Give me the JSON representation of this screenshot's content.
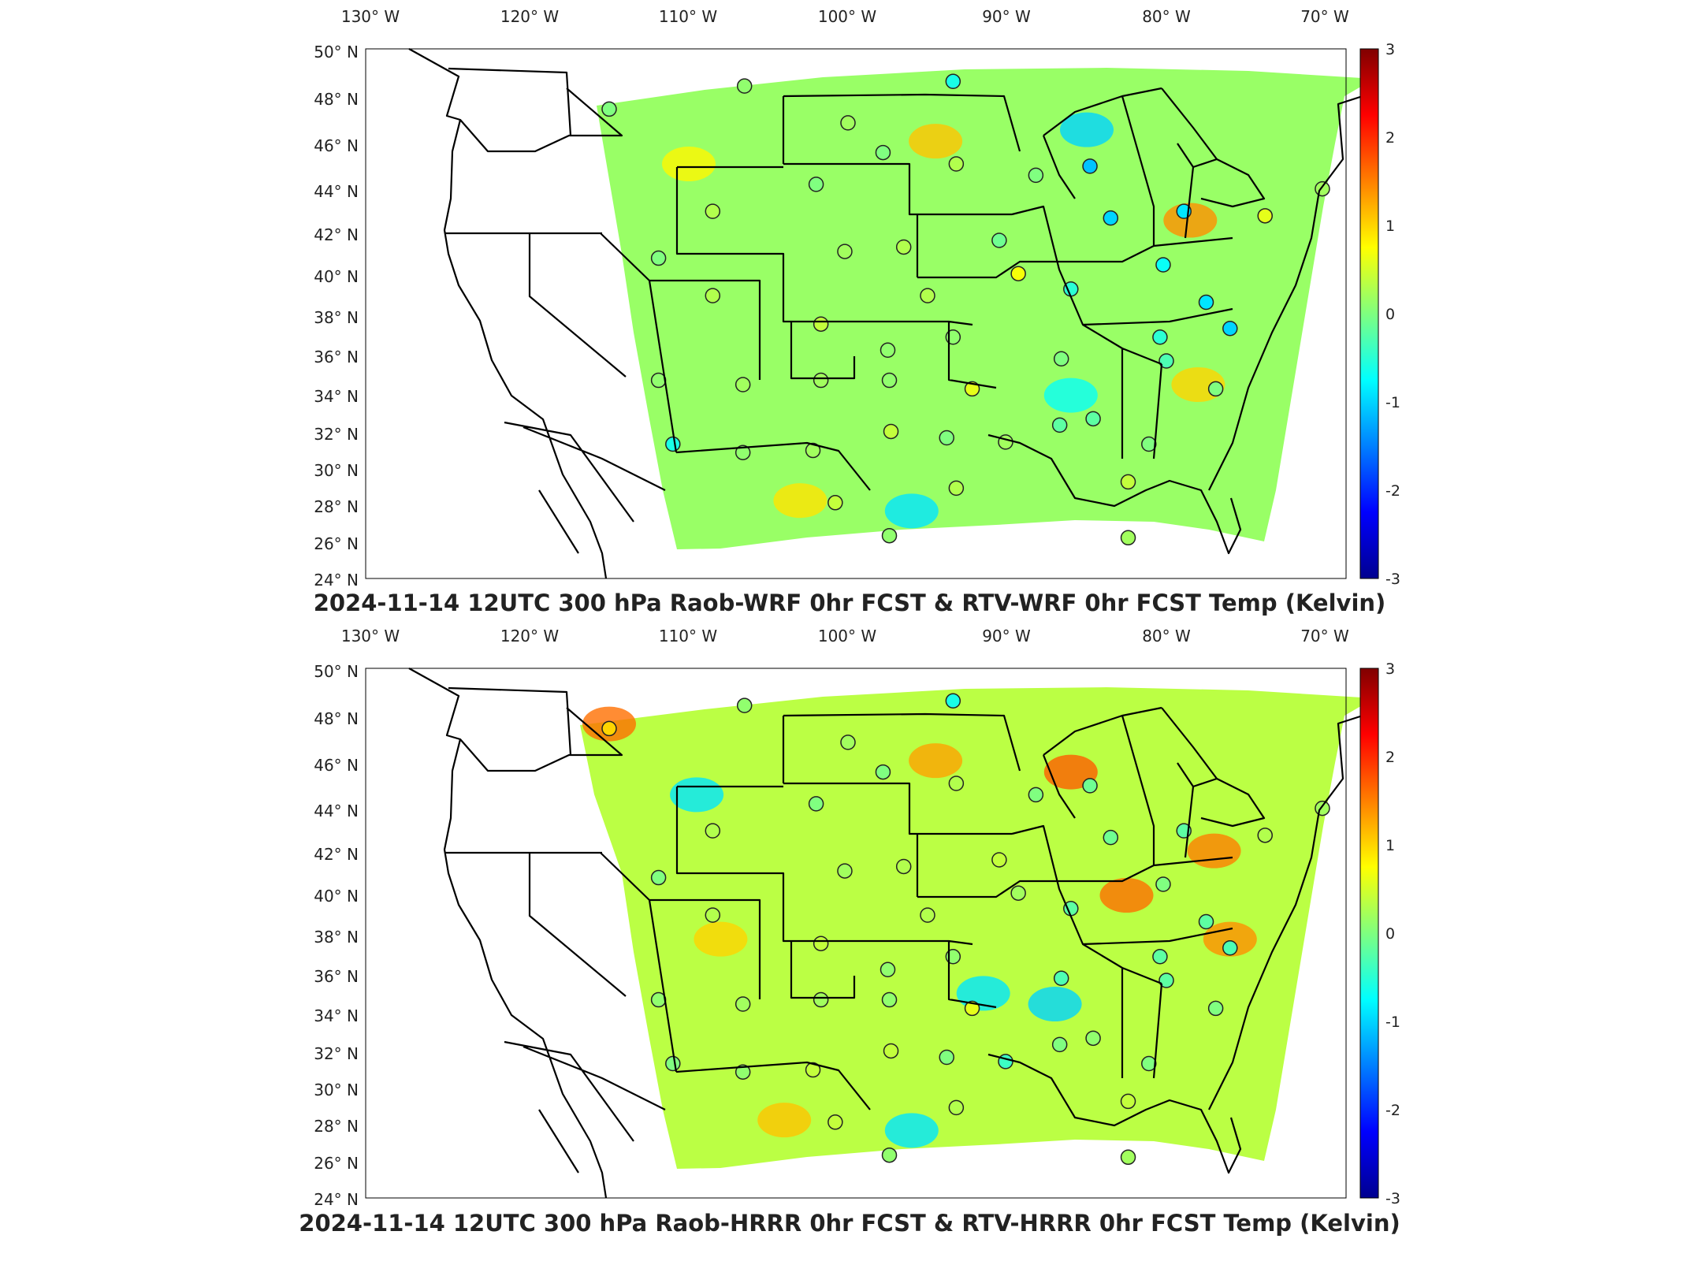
{
  "panels": [
    {
      "id": "wrf",
      "title": "2024-11-14 12UTC 300 hPa Raob-WRF 0hr FCST & RTV-WRF 0hr FCST Temp (Kelvin)",
      "lon_ticks": [
        "130° W",
        "120° W",
        "110° W",
        "100° W",
        "90° W",
        "80° W",
        "70° W"
      ],
      "lat_ticks": [
        "50° N",
        "48° N",
        "46° N",
        "44° N",
        "42° N",
        "40° N",
        "38° N",
        "36° N",
        "34° N",
        "32° N",
        "30° N",
        "28° N",
        "26° N",
        "24° N"
      ],
      "colorbar_ticks": [
        "3",
        "2",
        "1",
        "0",
        "-1",
        "-2",
        "-3"
      ],
      "anomalies": [
        {
          "lon": -85.0,
          "lat": 46.5,
          "v": -1.0
        },
        {
          "lon": -78.5,
          "lat": 42.5,
          "v": 1.4
        },
        {
          "lon": -94.5,
          "lat": 46.0,
          "v": 1.1
        },
        {
          "lon": -96.0,
          "lat": 29.0,
          "v": -0.9
        },
        {
          "lon": -110.0,
          "lat": 45.0,
          "v": 0.8
        },
        {
          "lon": -86.0,
          "lat": 34.5,
          "v": -0.7
        },
        {
          "lon": -78.0,
          "lat": 35.0,
          "v": 1.0
        },
        {
          "lon": -103.0,
          "lat": 29.5,
          "v": 0.9
        }
      ],
      "stations": [
        {
          "lon": -115.0,
          "lat": 47.4,
          "v": 0.0
        },
        {
          "lon": -106.5,
          "lat": 48.4,
          "v": 0.1
        },
        {
          "lon": -100.0,
          "lat": 46.8,
          "v": 0.2
        },
        {
          "lon": -97.8,
          "lat": 45.5,
          "v": 0.0
        },
        {
          "lon": -93.4,
          "lat": 48.6,
          "v": -0.6
        },
        {
          "lon": -93.2,
          "lat": 45.0,
          "v": 0.3
        },
        {
          "lon": -88.2,
          "lat": 44.5,
          "v": 0.0
        },
        {
          "lon": -84.8,
          "lat": 44.9,
          "v": -1.1
        },
        {
          "lon": -83.5,
          "lat": 42.6,
          "v": -1.0
        },
        {
          "lon": -78.9,
          "lat": 42.9,
          "v": -0.9
        },
        {
          "lon": -73.8,
          "lat": 42.7,
          "v": 0.6
        },
        {
          "lon": -70.2,
          "lat": 43.9,
          "v": 0.2
        },
        {
          "lon": -108.5,
          "lat": 42.9,
          "v": 0.3
        },
        {
          "lon": -102.0,
          "lat": 44.1,
          "v": 0.0
        },
        {
          "lon": -100.2,
          "lat": 41.1,
          "v": 0.2
        },
        {
          "lon": -96.5,
          "lat": 41.3,
          "v": 0.3
        },
        {
          "lon": -90.5,
          "lat": 41.6,
          "v": -0.1
        },
        {
          "lon": -89.3,
          "lat": 40.1,
          "v": 0.7
        },
        {
          "lon": -86.0,
          "lat": 39.4,
          "v": -0.5
        },
        {
          "lon": -80.2,
          "lat": 40.5,
          "v": -0.7
        },
        {
          "lon": -77.5,
          "lat": 38.8,
          "v": -0.9
        },
        {
          "lon": -76.0,
          "lat": 37.6,
          "v": -1.0
        },
        {
          "lon": -111.9,
          "lat": 40.8,
          "v": 0.0
        },
        {
          "lon": -108.5,
          "lat": 39.1,
          "v": 0.3
        },
        {
          "lon": -101.7,
          "lat": 37.8,
          "v": 0.4
        },
        {
          "lon": -95.0,
          "lat": 39.1,
          "v": 0.3
        },
        {
          "lon": -93.4,
          "lat": 37.2,
          "v": 0.1
        },
        {
          "lon": -86.6,
          "lat": 36.2,
          "v": 0.0
        },
        {
          "lon": -80.4,
          "lat": 37.2,
          "v": -0.5
        },
        {
          "lon": -80.0,
          "lat": 36.1,
          "v": -0.3
        },
        {
          "lon": -76.9,
          "lat": 34.8,
          "v": 0.0
        },
        {
          "lon": -111.9,
          "lat": 35.2,
          "v": 0.1
        },
        {
          "lon": -106.6,
          "lat": 35.0,
          "v": 0.2
        },
        {
          "lon": -101.7,
          "lat": 35.2,
          "v": 0.2
        },
        {
          "lon": -97.5,
          "lat": 36.6,
          "v": 0.1
        },
        {
          "lon": -97.4,
          "lat": 35.2,
          "v": 0.1
        },
        {
          "lon": -92.2,
          "lat": 34.8,
          "v": 0.6
        },
        {
          "lon": -111.0,
          "lat": 32.2,
          "v": -0.6
        },
        {
          "lon": -106.6,
          "lat": 31.8,
          "v": 0.1
        },
        {
          "lon": -102.2,
          "lat": 31.9,
          "v": 0.2
        },
        {
          "lon": -97.3,
          "lat": 32.8,
          "v": 0.4
        },
        {
          "lon": -93.8,
          "lat": 32.5,
          "v": 0.0
        },
        {
          "lon": -90.1,
          "lat": 32.3,
          "v": 0.2
        },
        {
          "lon": -86.7,
          "lat": 33.1,
          "v": -0.2
        },
        {
          "lon": -84.6,
          "lat": 33.4,
          "v": -0.2
        },
        {
          "lon": -81.1,
          "lat": 32.2,
          "v": 0.0
        },
        {
          "lon": -100.8,
          "lat": 29.4,
          "v": 0.4
        },
        {
          "lon": -97.4,
          "lat": 27.8,
          "v": 0.1
        },
        {
          "lon": -93.2,
          "lat": 30.1,
          "v": 0.3
        },
        {
          "lon": -82.4,
          "lat": 30.4,
          "v": 0.4
        },
        {
          "lon": -82.4,
          "lat": 27.7,
          "v": 0.2
        }
      ]
    },
    {
      "id": "hrrr",
      "title": "2024-11-14 12UTC 300 hPa Raob-HRRR 0hr FCST & RTV-HRRR 0hr FCST Temp (Kelvin)",
      "lon_ticks": [
        "130° W",
        "120° W",
        "110° W",
        "100° W",
        "90° W",
        "80° W",
        "70° W"
      ],
      "lat_ticks": [
        "50° N",
        "48° N",
        "46° N",
        "44° N",
        "42° N",
        "40° N",
        "38° N",
        "36° N",
        "34° N",
        "32° N",
        "30° N",
        "28° N",
        "26° N",
        "24° N"
      ],
      "colorbar_ticks": [
        "3",
        "2",
        "1",
        "0",
        "-1",
        "-2",
        "-3"
      ],
      "anomalies": [
        {
          "lon": -115.0,
          "lat": 47.6,
          "v": 1.6
        },
        {
          "lon": -109.5,
          "lat": 44.5,
          "v": -0.9
        },
        {
          "lon": -86.0,
          "lat": 45.5,
          "v": 1.7
        },
        {
          "lon": -77.0,
          "lat": 42.0,
          "v": 1.5
        },
        {
          "lon": -82.5,
          "lat": 40.0,
          "v": 1.6
        },
        {
          "lon": -94.5,
          "lat": 46.0,
          "v": 1.3
        },
        {
          "lon": -91.5,
          "lat": 35.5,
          "v": -0.9
        },
        {
          "lon": -87.0,
          "lat": 35.0,
          "v": -1.0
        },
        {
          "lon": -104.0,
          "lat": 29.5,
          "v": 1.1
        },
        {
          "lon": -96.0,
          "lat": 29.0,
          "v": -0.9
        },
        {
          "lon": -76.0,
          "lat": 38.0,
          "v": 1.4
        },
        {
          "lon": -108.0,
          "lat": 38.0,
          "v": 1.0
        }
      ],
      "stations": [
        {
          "lon": -115.0,
          "lat": 47.4,
          "v": 1.0
        },
        {
          "lon": -106.5,
          "lat": 48.4,
          "v": 0.1
        },
        {
          "lon": -100.0,
          "lat": 46.8,
          "v": 0.2
        },
        {
          "lon": -97.8,
          "lat": 45.5,
          "v": 0.0
        },
        {
          "lon": -93.4,
          "lat": 48.6,
          "v": -0.6
        },
        {
          "lon": -93.2,
          "lat": 45.0,
          "v": 0.3
        },
        {
          "lon": -88.2,
          "lat": 44.5,
          "v": 0.0
        },
        {
          "lon": -84.8,
          "lat": 44.9,
          "v": -0.1
        },
        {
          "lon": -83.5,
          "lat": 42.6,
          "v": -0.1
        },
        {
          "lon": -78.9,
          "lat": 42.9,
          "v": -0.2
        },
        {
          "lon": -73.8,
          "lat": 42.7,
          "v": 0.3
        },
        {
          "lon": -70.2,
          "lat": 43.9,
          "v": 0.2
        },
        {
          "lon": -108.5,
          "lat": 42.9,
          "v": 0.3
        },
        {
          "lon": -102.0,
          "lat": 44.1,
          "v": 0.0
        },
        {
          "lon": -100.2,
          "lat": 41.1,
          "v": 0.2
        },
        {
          "lon": -96.5,
          "lat": 41.3,
          "v": 0.3
        },
        {
          "lon": -90.5,
          "lat": 41.6,
          "v": 0.4
        },
        {
          "lon": -89.3,
          "lat": 40.1,
          "v": 0.2
        },
        {
          "lon": -86.0,
          "lat": 39.4,
          "v": -0.2
        },
        {
          "lon": -80.2,
          "lat": 40.5,
          "v": 0.0
        },
        {
          "lon": -77.5,
          "lat": 38.8,
          "v": -0.2
        },
        {
          "lon": -76.0,
          "lat": 37.6,
          "v": -0.3
        },
        {
          "lon": -111.9,
          "lat": 40.8,
          "v": 0.0
        },
        {
          "lon": -108.5,
          "lat": 39.1,
          "v": 0.3
        },
        {
          "lon": -101.7,
          "lat": 37.8,
          "v": 0.4
        },
        {
          "lon": -95.0,
          "lat": 39.1,
          "v": 0.3
        },
        {
          "lon": -93.4,
          "lat": 37.2,
          "v": 0.1
        },
        {
          "lon": -86.6,
          "lat": 36.2,
          "v": -0.3
        },
        {
          "lon": -80.4,
          "lat": 37.2,
          "v": -0.2
        },
        {
          "lon": -80.0,
          "lat": 36.1,
          "v": -0.2
        },
        {
          "lon": -76.9,
          "lat": 34.8,
          "v": 0.0
        },
        {
          "lon": -111.9,
          "lat": 35.2,
          "v": 0.1
        },
        {
          "lon": -106.6,
          "lat": 35.0,
          "v": 0.2
        },
        {
          "lon": -101.7,
          "lat": 35.2,
          "v": 0.2
        },
        {
          "lon": -97.5,
          "lat": 36.6,
          "v": 0.1
        },
        {
          "lon": -97.4,
          "lat": 35.2,
          "v": 0.1
        },
        {
          "lon": -92.2,
          "lat": 34.8,
          "v": 0.6
        },
        {
          "lon": -111.0,
          "lat": 32.2,
          "v": 0.0
        },
        {
          "lon": -106.6,
          "lat": 31.8,
          "v": 0.1
        },
        {
          "lon": -102.2,
          "lat": 31.9,
          "v": 0.4
        },
        {
          "lon": -97.3,
          "lat": 32.8,
          "v": 0.4
        },
        {
          "lon": -93.8,
          "lat": 32.5,
          "v": 0.0
        },
        {
          "lon": -90.1,
          "lat": 32.3,
          "v": -0.4
        },
        {
          "lon": -86.7,
          "lat": 33.1,
          "v": 0.0
        },
        {
          "lon": -84.6,
          "lat": 33.4,
          "v": 0.1
        },
        {
          "lon": -81.1,
          "lat": 32.2,
          "v": 0.0
        },
        {
          "lon": -100.8,
          "lat": 29.4,
          "v": 0.4
        },
        {
          "lon": -97.4,
          "lat": 27.8,
          "v": 0.1
        },
        {
          "lon": -93.2,
          "lat": 30.1,
          "v": 0.3
        },
        {
          "lon": -82.4,
          "lat": 30.4,
          "v": 0.4
        },
        {
          "lon": -82.4,
          "lat": 27.7,
          "v": 0.2
        }
      ]
    }
  ]
}
